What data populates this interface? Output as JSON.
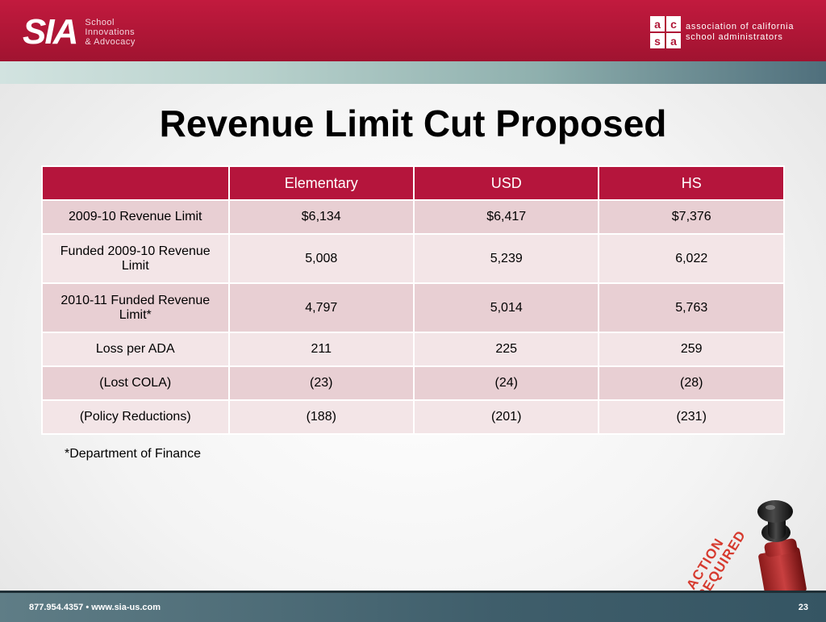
{
  "header": {
    "logo_mark": "SIA",
    "logo_tagline": [
      "School",
      "Innovations",
      "& Advocacy"
    ],
    "partner_mark": [
      "a",
      "c",
      "s",
      "a"
    ],
    "partner_text": [
      "association of california",
      "school administrators"
    ]
  },
  "title": "Revenue Limit Cut Proposed",
  "table": {
    "columns": [
      "",
      "Elementary",
      "USD",
      "HS"
    ],
    "rows": [
      [
        "2009-10 Revenue Limit",
        "$6,134",
        "$6,417",
        "$7,376"
      ],
      [
        "Funded 2009-10 Revenue Limit",
        "5,008",
        "5,239",
        "6,022"
      ],
      [
        "2010-11 Funded Revenue Limit*",
        "4,797",
        "5,014",
        "5,763"
      ],
      [
        "Loss per ADA",
        "211",
        "225",
        "259"
      ],
      [
        "(Lost COLA)",
        "(23)",
        "(24)",
        "(28)"
      ],
      [
        "(Policy Reductions)",
        "(188)",
        "(201)",
        "(231)"
      ]
    ]
  },
  "footnote": "*Department of Finance",
  "footer": {
    "contact": "877.954.4357  •  www.sia-us.com",
    "page_number": "23"
  },
  "stamp": {
    "line1": "ACTION",
    "line2": "REQUIRED",
    "ink_color": "#d63a2e"
  },
  "colors": {
    "brand_red": "#b5153c",
    "footer_teal": "#3f5e6b"
  }
}
